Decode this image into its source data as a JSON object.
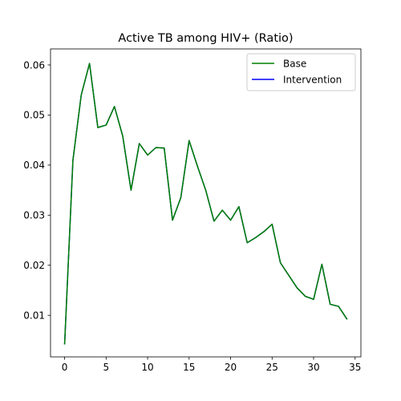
{
  "chart_data": {
    "type": "line",
    "title": "Active TB among HIV+ (Ratio)",
    "xlabel": "",
    "ylabel": "",
    "xlim": [
      -1.7,
      35.7
    ],
    "ylim": [
      0.0017,
      0.0632
    ],
    "xticks": [
      0,
      5,
      10,
      15,
      20,
      25,
      30,
      35
    ],
    "yticks": [
      0.01,
      0.02,
      0.03,
      0.04,
      0.05,
      0.06
    ],
    "ytick_labels": [
      "0.01",
      "0.02",
      "0.03",
      "0.04",
      "0.05",
      "0.06"
    ],
    "grid": false,
    "legend_position": "upper right",
    "x": [
      0,
      1,
      2,
      3,
      4,
      5,
      6,
      7,
      8,
      9,
      10,
      11,
      12,
      13,
      14,
      15,
      16,
      17,
      18,
      19,
      20,
      21,
      22,
      23,
      24,
      25,
      26,
      27,
      28,
      29,
      30,
      31,
      32,
      33,
      34
    ],
    "series": [
      {
        "name": "Base",
        "color": "#008000",
        "values": [
          0.0043,
          0.041,
          0.054,
          0.0603,
          0.0475,
          0.048,
          0.0517,
          0.0458,
          0.035,
          0.0443,
          0.042,
          0.0435,
          0.0434,
          0.029,
          0.0335,
          0.0449,
          0.0398,
          0.035,
          0.0288,
          0.031,
          0.029,
          0.0317,
          0.0245,
          0.0255,
          0.0267,
          0.0282,
          0.0205,
          0.018,
          0.0155,
          0.0138,
          0.0132,
          0.0202,
          0.0122,
          0.0118,
          0.0093
        ]
      },
      {
        "name": "Intervention",
        "color": "#0000ff",
        "values": [
          0.0043,
          0.041,
          0.054,
          0.0603,
          0.0475,
          0.048,
          0.0517,
          0.0458,
          0.035,
          0.0443,
          0.042,
          0.0435,
          0.0434,
          0.029,
          0.0335,
          0.0449,
          0.0398,
          0.035,
          0.0288,
          0.031,
          0.029,
          0.0317,
          0.0245,
          0.0255,
          0.0267,
          0.0282,
          0.0205,
          0.018,
          0.0155,
          0.0138,
          0.0132,
          0.0202,
          0.0122,
          0.0118,
          0.0093
        ]
      }
    ]
  }
}
